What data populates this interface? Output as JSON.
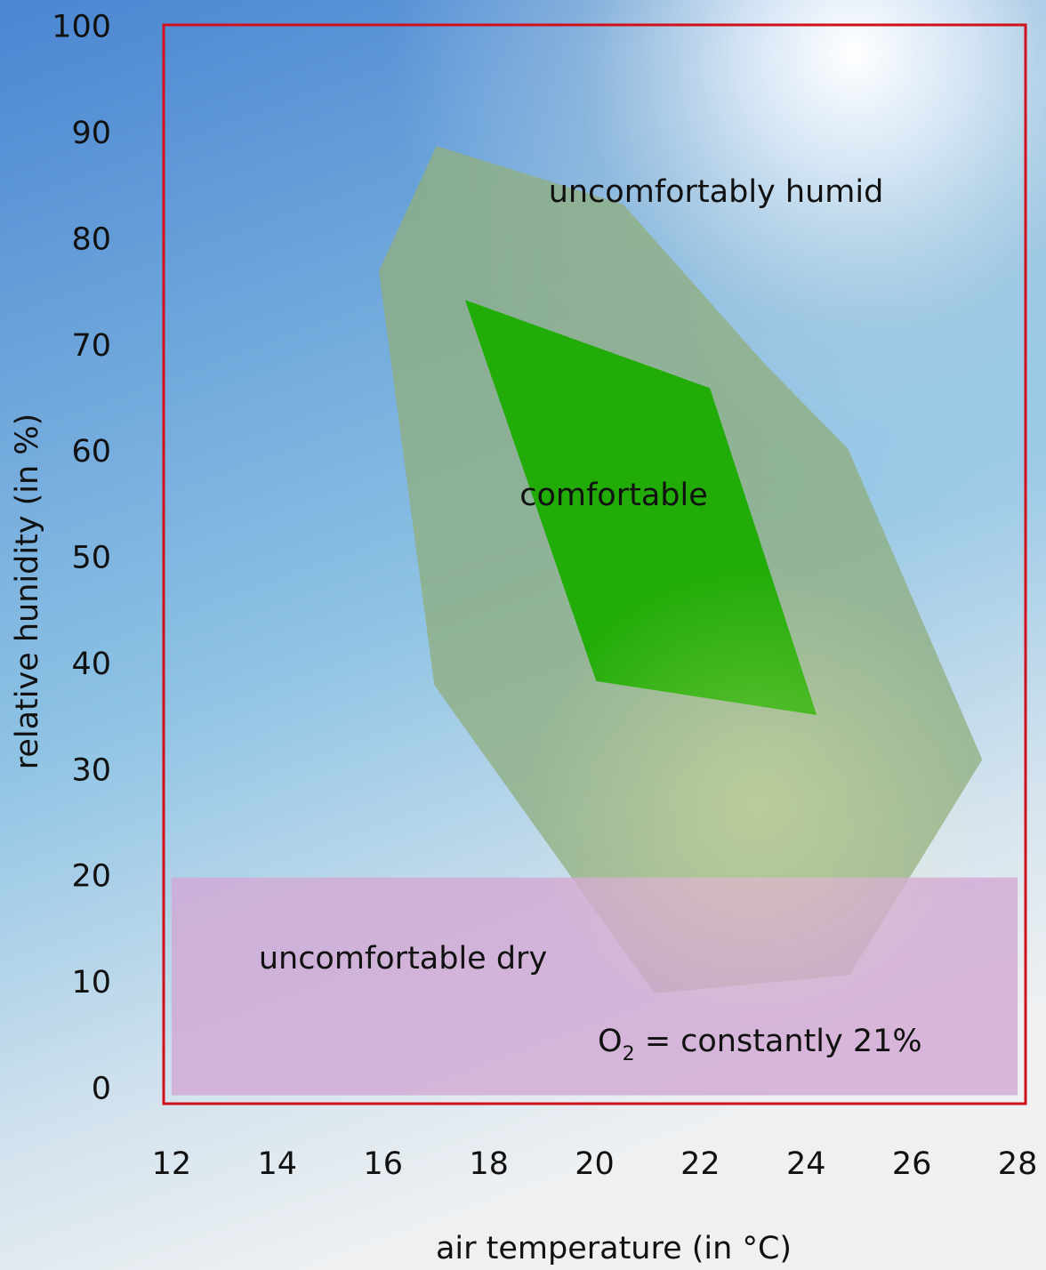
{
  "chart_data": {
    "type": "region",
    "xlabel": "air temperature (in °C)",
    "ylabel": "relative hunidity (in %)",
    "xlim": [
      11.85,
      28.15
    ],
    "ylim": [
      -1.3,
      100.3
    ],
    "xticks": [
      12,
      14,
      16,
      18,
      20,
      22,
      24,
      26,
      28
    ],
    "yticks": [
      0,
      10,
      20,
      30,
      40,
      50,
      60,
      70,
      80,
      90,
      100
    ],
    "frame_color": "#d0101a",
    "regions": [
      {
        "color": "#8fae80",
        "x": [
          17.01,
          20.54,
          23.23,
          24.79,
          27.33,
          24.82,
          21.13,
          16.97,
          15.92
        ],
        "y": [
          88.9,
          83.4,
          68.3,
          60.4,
          31.1,
          10.8,
          9.1,
          38.1,
          77.1
        ]
      },
      {
        "color": "#22ac08",
        "x": [
          17.55,
          22.18,
          24.2,
          20.03
        ],
        "y": [
          74.4,
          66.1,
          35.3,
          38.5
        ]
      },
      {
        "color": "#d2a8d4",
        "x": [
          12,
          28,
          28,
          12
        ],
        "y": [
          20,
          20,
          -0.5,
          -0.5
        ]
      }
    ],
    "annotations": [
      "uncomfortably humid",
      "comfortable",
      "uncomfortable dry"
    ],
    "note": {
      "text": "O",
      "subscript": "2",
      "rest": " = constantly 21%",
      "color": "#d4148a"
    }
  }
}
